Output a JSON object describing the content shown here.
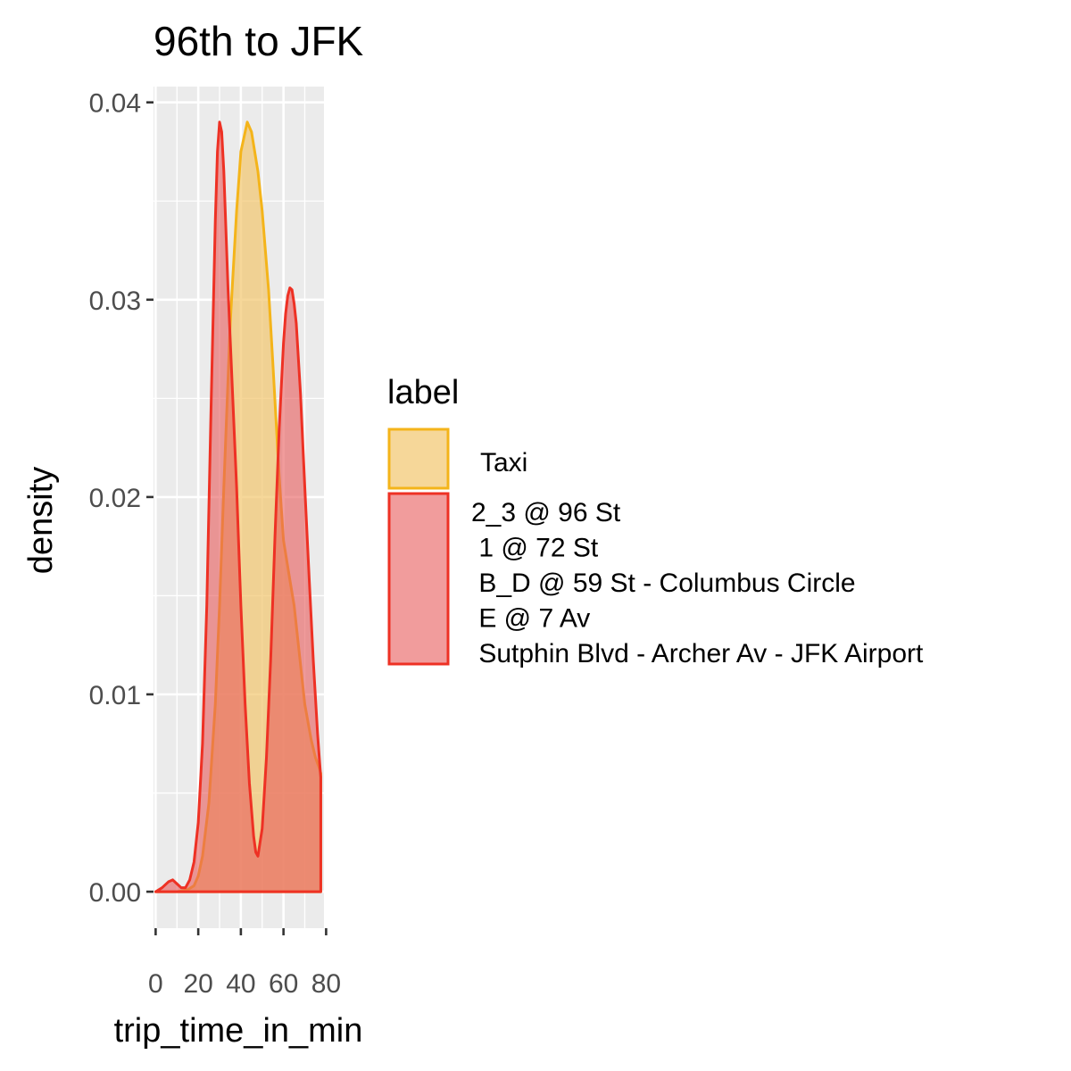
{
  "chart_data": {
    "type": "area",
    "title": "96th to JFK",
    "xlabel": "trip_time_in_min",
    "ylabel": "density",
    "xlim": [
      -1,
      79
    ],
    "ylim": [
      -0.00185,
      0.0408
    ],
    "x_ticks": [
      0,
      20,
      40,
      60,
      80
    ],
    "x_tick_labels": [
      "0",
      "20",
      "40",
      "60",
      "80"
    ],
    "y_ticks": [
      0,
      0.01,
      0.02,
      0.03,
      0.04
    ],
    "y_tick_labels": [
      "0.00",
      "0.01",
      "0.02",
      "0.03",
      "0.04"
    ],
    "grid": true,
    "legend": {
      "title": "label",
      "position": "right",
      "entries": [
        {
          "label": "Taxi",
          "fill": "#f2c66d",
          "stroke": "#f4b41a",
          "opacity": 0.7
        },
        {
          "label_lines": [
            "2_3 @ 96 St",
            " 1 @ 72 St",
            " B_D @ 59 St - Columbus Circle",
            " E @ 7 Av",
            " Sutphin Blvd - Archer Av - JFK Airport"
          ],
          "fill": "#e85a5a",
          "stroke": "#ee3124",
          "opacity": 0.6
        }
      ]
    },
    "series": [
      {
        "legend_index": 0,
        "fill": "#f2c66d",
        "stroke": "#f4b41a",
        "opacity": 0.7,
        "x": [
          0,
          5,
          10,
          15,
          18,
          20,
          22,
          25,
          28,
          30,
          32,
          35,
          38,
          40,
          43,
          45,
          48,
          50,
          53,
          55,
          58,
          60,
          63,
          65,
          68,
          70,
          73,
          75,
          77,
          77.5
        ],
        "y": [
          0,
          0,
          0,
          0.0001,
          0.0003,
          0.0008,
          0.0018,
          0.0045,
          0.0095,
          0.0145,
          0.0205,
          0.0288,
          0.0345,
          0.0375,
          0.039,
          0.0385,
          0.0365,
          0.0345,
          0.0305,
          0.0268,
          0.021,
          0.0178,
          0.0158,
          0.0145,
          0.0115,
          0.0095,
          0.0077,
          0.0068,
          0.0062,
          0.006
        ]
      },
      {
        "legend_index": 1,
        "fill": "#e85a5a",
        "stroke": "#ee3124",
        "opacity": 0.6,
        "x": [
          0,
          3,
          6,
          8,
          10,
          12,
          14,
          16,
          18,
          20,
          22,
          24,
          26,
          28,
          29,
          30,
          31,
          32,
          33,
          34,
          36,
          38,
          40,
          42,
          44,
          46,
          47,
          48,
          50,
          52,
          54,
          56,
          58,
          60,
          61,
          62,
          63,
          64,
          65,
          66,
          68,
          70,
          72,
          74,
          76,
          77,
          77.5
        ],
        "y": [
          0,
          0.0002,
          0.0005,
          0.0006,
          0.0004,
          0.0002,
          0.0002,
          0.0006,
          0.0015,
          0.0035,
          0.0075,
          0.0145,
          0.0245,
          0.034,
          0.0375,
          0.039,
          0.0385,
          0.0365,
          0.0335,
          0.0305,
          0.0255,
          0.0205,
          0.0145,
          0.0095,
          0.0055,
          0.0028,
          0.002,
          0.0018,
          0.0032,
          0.0068,
          0.0118,
          0.018,
          0.0235,
          0.0278,
          0.0293,
          0.0302,
          0.0306,
          0.0305,
          0.0298,
          0.0288,
          0.0252,
          0.0205,
          0.016,
          0.0117,
          0.008,
          0.0065,
          0.0058
        ]
      }
    ]
  }
}
